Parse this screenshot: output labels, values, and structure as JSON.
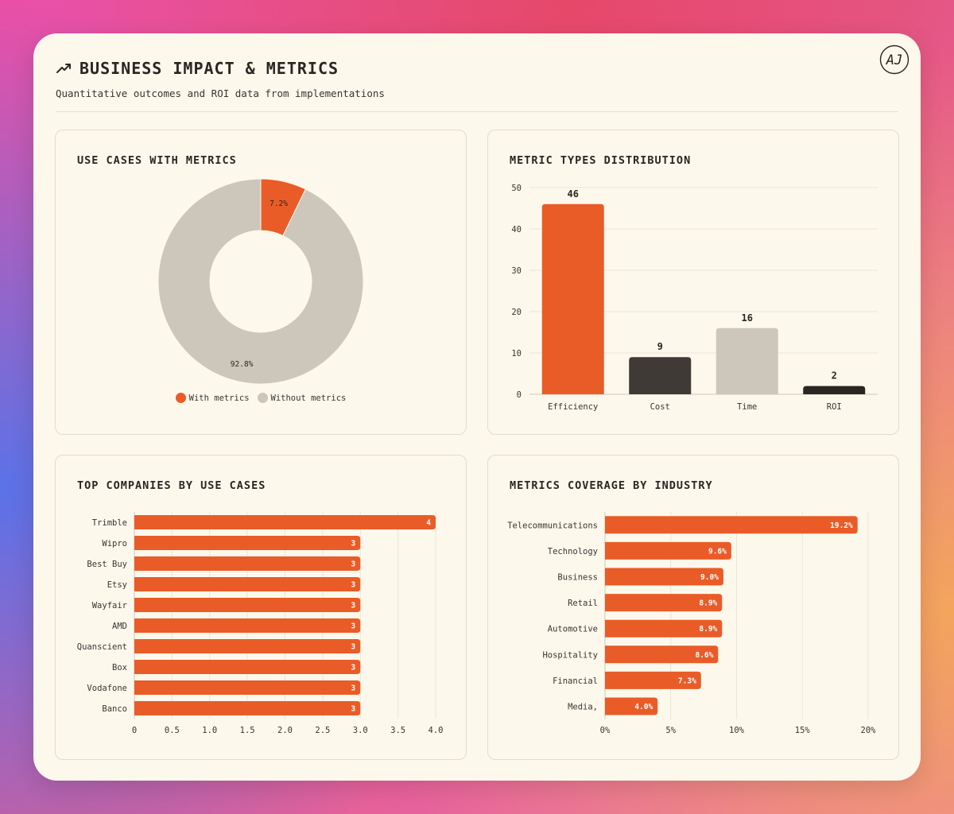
{
  "header": {
    "title": "BUSINESS IMPACT & METRICS",
    "subtitle": "Quantitative outcomes and ROI data from implementations",
    "logo_text": "AJ"
  },
  "colors": {
    "accent": "#e95c28",
    "neutral": "#cdc6bb",
    "dark": "#3f3a35",
    "black": "#2a2622"
  },
  "chart_data": [
    {
      "id": "use_cases",
      "type": "pie",
      "title": "USE CASES WITH METRICS",
      "labels": [
        "With metrics",
        "Without metrics"
      ],
      "values": [
        7.2,
        92.8
      ],
      "value_labels": [
        "7.2%",
        "92.8%"
      ],
      "donut": true
    },
    {
      "id": "metric_types",
      "type": "bar",
      "title": "METRIC TYPES DISTRIBUTION",
      "categories": [
        "Efficiency",
        "Cost",
        "Time",
        "ROI"
      ],
      "values": [
        46,
        9,
        16,
        2
      ],
      "ylim": [
        0,
        50
      ],
      "yticks": [
        "0",
        "10",
        "20",
        "30",
        "40",
        "50"
      ]
    },
    {
      "id": "top_companies",
      "type": "bar",
      "orientation": "horizontal",
      "title": "TOP COMPANIES BY USE CASES",
      "categories": [
        "Trimble",
        "Wipro",
        "Best Buy",
        "Etsy",
        "Wayfair",
        "AMD",
        "Quanscient",
        "Box",
        "Vodafone",
        "Banco"
      ],
      "values": [
        4,
        3,
        3,
        3,
        3,
        3,
        3,
        3,
        3,
        3
      ],
      "xlim": [
        0,
        4
      ],
      "xticks": [
        "0",
        "0.5",
        "1.0",
        "1.5",
        "2.0",
        "2.5",
        "3.0",
        "3.5",
        "4.0"
      ]
    },
    {
      "id": "industry_coverage",
      "type": "bar",
      "orientation": "horizontal",
      "title": "METRICS COVERAGE BY INDUSTRY",
      "categories": [
        "Telecommunications",
        "Technology",
        "Business",
        "Retail",
        "Automotive",
        "Hospitality",
        "Financial",
        "Media,"
      ],
      "values": [
        19.2,
        9.6,
        9.0,
        8.9,
        8.9,
        8.6,
        7.3,
        4.0
      ],
      "value_labels": [
        "19.2%",
        "9.6%",
        "9.0%",
        "8.9%",
        "8.9%",
        "8.6%",
        "7.3%",
        "4.0%"
      ],
      "xlim": [
        0,
        20
      ],
      "xticks": [
        "0%",
        "5%",
        "10%",
        "15%",
        "20%"
      ]
    }
  ]
}
